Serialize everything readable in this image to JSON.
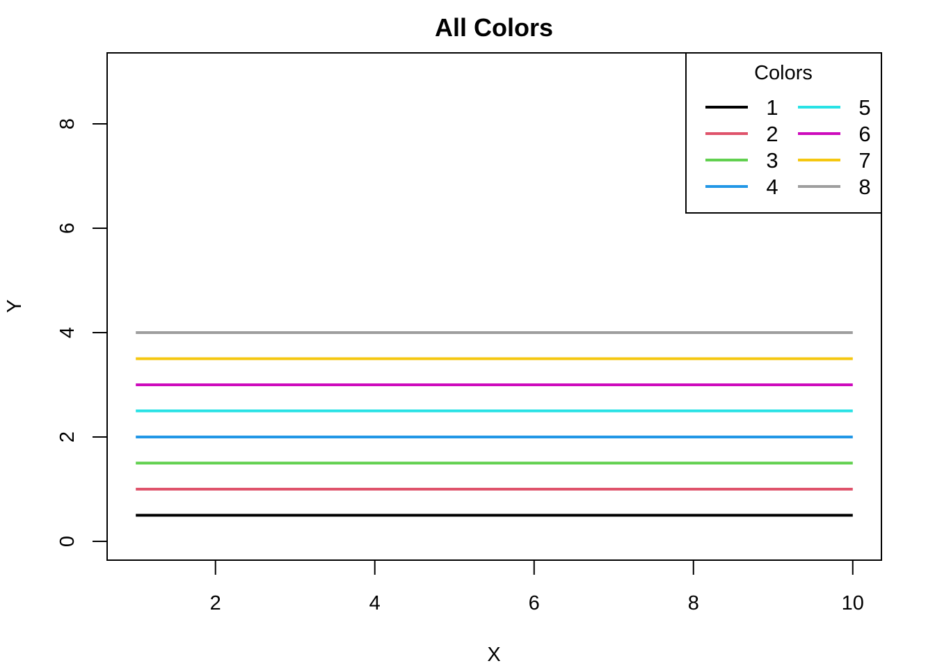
{
  "chart_data": {
    "type": "line",
    "title": "All Colors",
    "xlabel": "X",
    "ylabel": "Y",
    "xlim": [
      0.64,
      10.36
    ],
    "ylim": [
      -0.36,
      9.36
    ],
    "xticks": [
      "2",
      "4",
      "6",
      "8",
      "10"
    ],
    "yticks": [
      "0",
      "2",
      "4",
      "6",
      "8"
    ],
    "x": [
      1,
      10
    ],
    "series": [
      {
        "name": "1",
        "color": "#000000",
        "values": [
          0.5,
          0.5
        ]
      },
      {
        "name": "2",
        "color": "#DF536B",
        "values": [
          1.0,
          1.0
        ]
      },
      {
        "name": "3",
        "color": "#61D04F",
        "values": [
          1.5,
          1.5
        ]
      },
      {
        "name": "4",
        "color": "#2297E6",
        "values": [
          2.0,
          2.0
        ]
      },
      {
        "name": "5",
        "color": "#28E2E5",
        "values": [
          2.5,
          2.5
        ]
      },
      {
        "name": "6",
        "color": "#CD0BBC",
        "values": [
          3.0,
          3.0
        ]
      },
      {
        "name": "7",
        "color": "#F5C710",
        "values": [
          3.5,
          3.5
        ]
      },
      {
        "name": "8",
        "color": "#9E9E9E",
        "values": [
          4.0,
          4.0
        ]
      }
    ],
    "legend": {
      "title": "Colors",
      "placement": "top-right",
      "columns": 2
    },
    "grid": false
  }
}
